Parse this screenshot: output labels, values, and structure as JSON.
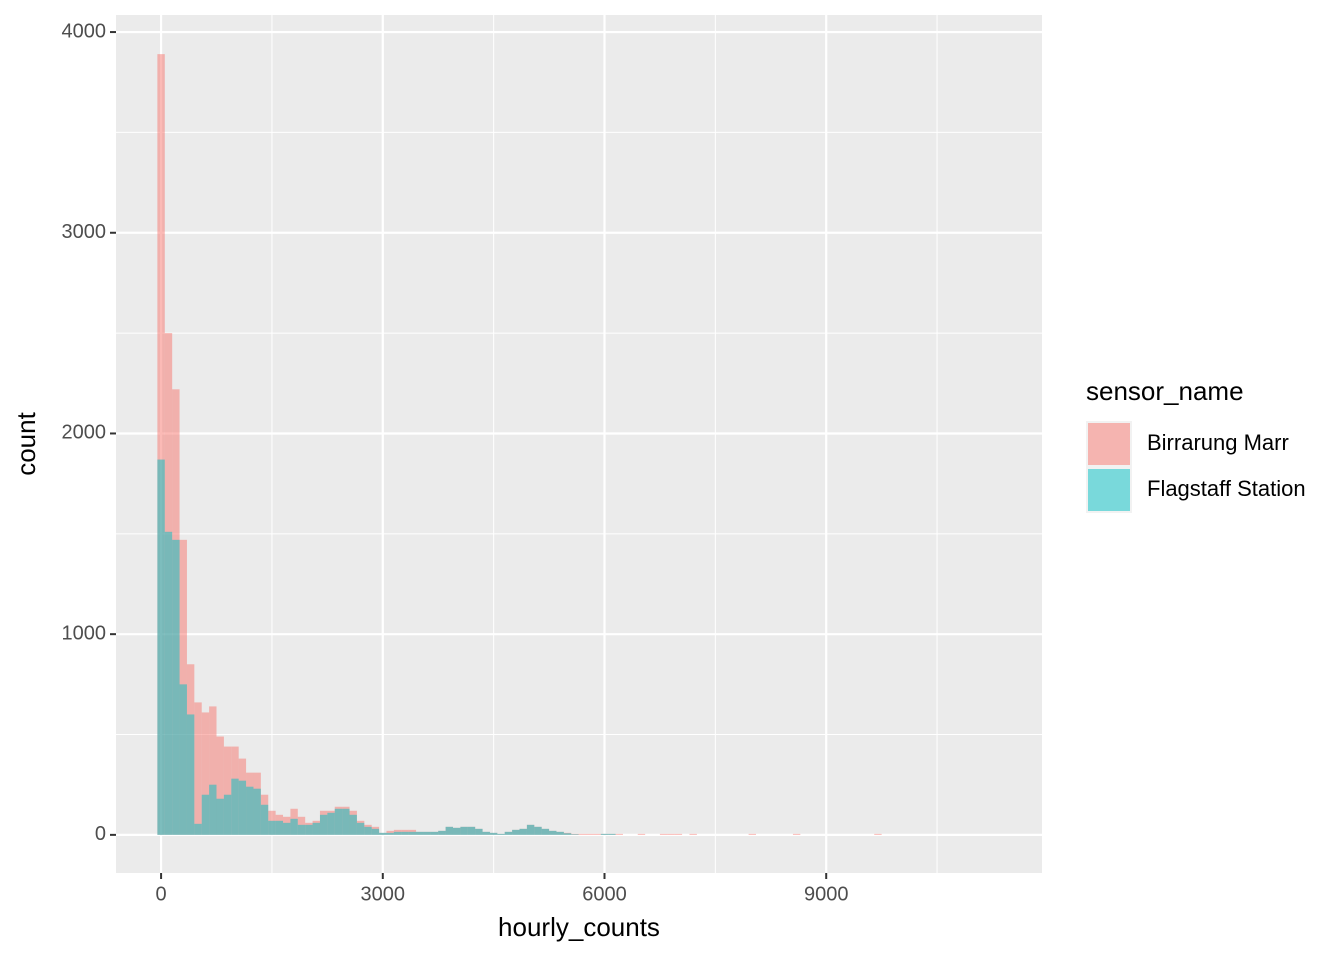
{
  "chart_data": {
    "type": "histogram",
    "xlabel": "hourly_counts",
    "ylabel": "count",
    "legend_title": "sensor_name",
    "bins": [
      -50,
      50,
      150,
      250,
      350,
      450,
      550,
      650,
      750,
      850,
      950,
      1050,
      1150,
      1250,
      1350,
      1450,
      1550,
      1650,
      1750,
      1850,
      1950,
      2050,
      2150,
      2250,
      2350,
      2450,
      2550,
      2650,
      2750,
      2850,
      2950,
      3050,
      3150,
      3250,
      3350,
      3450,
      3550,
      3650,
      3750,
      3850,
      3950,
      4050,
      4150,
      4250,
      4350,
      4450,
      4550,
      4650,
      4750,
      4850,
      4950,
      5050,
      5150,
      5250,
      5350,
      5450,
      5550,
      5650,
      5750,
      5850,
      5950,
      6050,
      6150,
      6250,
      6350,
      6450,
      6550,
      6650,
      6750,
      6850,
      6950,
      7050,
      7150,
      7250,
      7350,
      7450,
      7550,
      7650,
      7750,
      7850,
      7950,
      8050,
      8150,
      8250,
      8350,
      8450,
      8550,
      8650,
      8750,
      8850,
      8950,
      9050,
      9150,
      9250,
      9350,
      9450,
      9550,
      9650,
      9750,
      9850,
      9950,
      10050,
      10150,
      10250,
      10350,
      10450,
      10550,
      10650,
      10750,
      10850,
      10950,
      11050,
      11150,
      11250,
      11350
    ],
    "series": [
      {
        "name": "Birrarung Marr",
        "color": "#F8766D",
        "values": [
          3890,
          2500,
          2220,
          1470,
          850,
          660,
          610,
          640,
          490,
          440,
          440,
          380,
          310,
          310,
          200,
          120,
          100,
          90,
          130,
          90,
          60,
          70,
          120,
          120,
          140,
          140,
          120,
          70,
          50,
          40,
          10,
          20,
          25,
          25,
          25,
          15,
          15,
          15,
          20,
          40,
          35,
          40,
          40,
          30,
          15,
          10,
          5,
          15,
          25,
          30,
          50,
          40,
          30,
          20,
          15,
          10,
          5,
          5,
          5,
          5,
          5,
          5,
          5,
          0,
          0,
          5,
          0,
          0,
          5,
          5,
          5,
          0,
          5,
          0,
          0,
          0,
          0,
          0,
          0,
          0,
          5,
          0,
          0,
          0,
          0,
          0,
          5,
          0,
          0,
          0,
          0,
          0,
          0,
          0,
          0,
          0,
          0,
          5,
          0,
          0,
          0,
          0,
          0,
          0,
          0,
          0,
          0,
          0,
          0,
          0,
          0,
          0,
          0,
          0
        ]
      },
      {
        "name": "Flagstaff Station",
        "color": "#00BFC4",
        "values": [
          1870,
          1510,
          1470,
          750,
          600,
          55,
          200,
          250,
          180,
          200,
          280,
          270,
          240,
          230,
          150,
          70,
          70,
          60,
          80,
          50,
          50,
          60,
          100,
          110,
          130,
          130,
          100,
          60,
          40,
          30,
          10,
          10,
          15,
          15,
          15,
          15,
          15,
          15,
          20,
          40,
          35,
          40,
          40,
          30,
          15,
          10,
          5,
          15,
          25,
          30,
          50,
          40,
          30,
          20,
          15,
          8,
          3,
          0,
          0,
          0,
          5,
          5,
          0,
          0,
          0,
          0,
          0,
          0,
          0,
          0,
          0,
          0,
          0,
          0,
          0,
          0,
          0,
          0,
          0,
          0,
          0,
          0,
          0,
          0,
          0,
          0,
          0,
          0,
          0,
          0,
          0,
          0,
          0,
          0,
          0,
          0,
          0,
          0,
          0,
          0,
          0,
          0,
          0,
          0,
          0,
          0,
          0,
          0,
          0,
          0,
          0,
          0,
          0,
          0
        ]
      }
    ],
    "opacity": 0.5,
    "xlim": [
      -610,
      11920
    ],
    "ylim": [
      -190,
      4085
    ],
    "xticks": [
      0,
      3000,
      6000,
      9000
    ],
    "yticks": [
      0,
      1000,
      2000,
      3000,
      4000
    ],
    "grid": true
  }
}
